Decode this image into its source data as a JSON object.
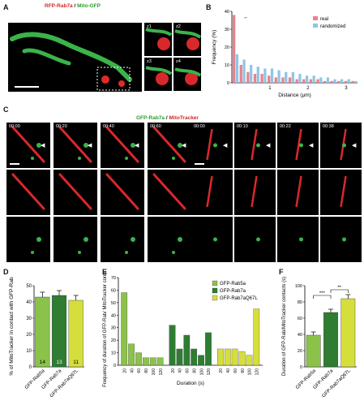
{
  "panel_labels": {
    "A": "A",
    "B": "B",
    "C": "C",
    "D": "D",
    "E": "E",
    "F": "F"
  },
  "panelA": {
    "title_red": "RFP-Rab7a",
    "title_sep": " / ",
    "title_green": "Mito-GFP",
    "zoom_labels": [
      "z1",
      "z2",
      "z3",
      "z4"
    ]
  },
  "panelC": {
    "title_green": "GFP-Rab7a",
    "title_sep": " / ",
    "title_red": "MitoTracker",
    "timestamps_left": [
      "00:00",
      "00:20",
      "00:40",
      "00:60"
    ],
    "timestamps_right": [
      "00:00",
      "00:10",
      "00:22",
      "00:38"
    ]
  },
  "colors": {
    "real": "#e8838d",
    "randomized": "#8fc6e6",
    "rab5a": "#8bc34a",
    "rab7a": "#2e7d32",
    "rab7aQ67L": "#d6de3c"
  },
  "chart_data": [
    {
      "panel": "B",
      "type": "bar",
      "ylabel": "Frequency (%)",
      "xlabel": "Distance (μm)",
      "ylim": [
        0,
        40
      ],
      "yticks": [
        0,
        10,
        20,
        30,
        40
      ],
      "xticks": [
        "1",
        "2",
        "3"
      ],
      "legend": [
        "real",
        "randomized"
      ],
      "legend_position": "top-right",
      "series": [
        {
          "name": "real",
          "values": [
            38,
            10,
            6,
            5,
            5,
            4,
            3,
            3,
            3,
            2,
            2,
            2,
            2,
            1,
            1,
            1,
            1,
            1
          ]
        },
        {
          "name": "randomized",
          "values": [
            16,
            13,
            10,
            9,
            8,
            8,
            7,
            6,
            6,
            5,
            4,
            4,
            3,
            3,
            2,
            2,
            2,
            1
          ]
        }
      ]
    },
    {
      "panel": "D",
      "type": "bar",
      "ylabel": "% of MitoTracker in contact with GFP-Rab",
      "ylim": [
        0,
        50
      ],
      "yticks": [
        0,
        10,
        20,
        30,
        40,
        50
      ],
      "categories": [
        "GFP-Rab5a",
        "GFP-Rab7a",
        "GFP-Rab7aQ67L"
      ],
      "values": [
        43,
        44,
        41
      ],
      "errors": [
        3,
        3,
        3
      ],
      "n_labels": [
        "14",
        "13",
        "11"
      ]
    },
    {
      "panel": "E",
      "type": "bar",
      "ylabel": "Frequency of duration of GFP-Rab/ MitoTracker contacts (%)",
      "xlabel": "Duration (s)",
      "ylim": [
        0,
        70
      ],
      "yticks": [
        0,
        10,
        20,
        30,
        40,
        50,
        60,
        70
      ],
      "categories": [
        "20",
        "40",
        "60",
        "80",
        "100",
        "120"
      ],
      "legend": [
        "GFP-Rab5a",
        "GFP-Rab7a",
        "GFP-Rab7aQ67L"
      ],
      "legend_position": "top-right",
      "series": [
        {
          "name": "GFP-Rab5a",
          "values": [
            58,
            17,
            10,
            6,
            6,
            6
          ]
        },
        {
          "name": "GFP-Rab7a",
          "values": [
            32,
            13,
            24,
            13,
            8,
            26
          ]
        },
        {
          "name": "GFP-Rab7aQ67L",
          "values": [
            13,
            13,
            13,
            11,
            8,
            45
          ]
        }
      ]
    },
    {
      "panel": "F",
      "type": "bar",
      "ylabel": "Duration of GFP-Rab/MitoTracker contacts (s)",
      "ylim": [
        0,
        100
      ],
      "yticks": [
        0,
        20,
        40,
        60,
        80,
        100
      ],
      "categories": [
        "GFP-Rab5a",
        "GFP-Rab7a",
        "GFP-Rab7aQ67L"
      ],
      "values": [
        39,
        67,
        84
      ],
      "errors": [
        4,
        4,
        5
      ],
      "significance": [
        "***",
        "**"
      ]
    }
  ]
}
